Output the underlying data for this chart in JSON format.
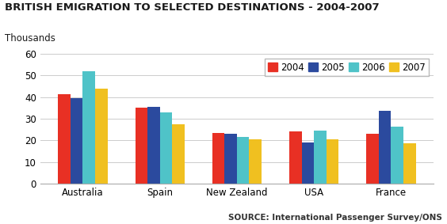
{
  "title": "BRITISH EMIGRATION TO SELECTED DESTINATIONS - 2004-2007",
  "ylabel": "Thousands",
  "source": "SOURCE: International Passenger Survey/ONS",
  "categories": [
    "Australia",
    "Spain",
    "New Zealand",
    "USA",
    "France"
  ],
  "years": [
    "2004",
    "2005",
    "2006",
    "2007"
  ],
  "colors": [
    "#e83024",
    "#2b4a9e",
    "#4fc3c8",
    "#f0c020"
  ],
  "values": {
    "2004": [
      41.5,
      35.0,
      23.5,
      24.0,
      23.0
    ],
    "2005": [
      39.5,
      35.5,
      23.0,
      19.0,
      33.5
    ],
    "2006": [
      52.0,
      33.0,
      21.5,
      24.5,
      26.5
    ],
    "2007": [
      44.0,
      27.5,
      20.5,
      20.5,
      18.5
    ]
  },
  "ylim": [
    0,
    60
  ],
  "yticks": [
    0,
    10,
    20,
    30,
    40,
    50,
    60
  ],
  "background_color": "#ffffff",
  "grid_color": "#cccccc",
  "title_fontsize": 9.5,
  "thousands_fontsize": 8.5,
  "legend_fontsize": 8.5,
  "axis_fontsize": 8.5,
  "source_fontsize": 7.5,
  "bar_width": 0.16
}
